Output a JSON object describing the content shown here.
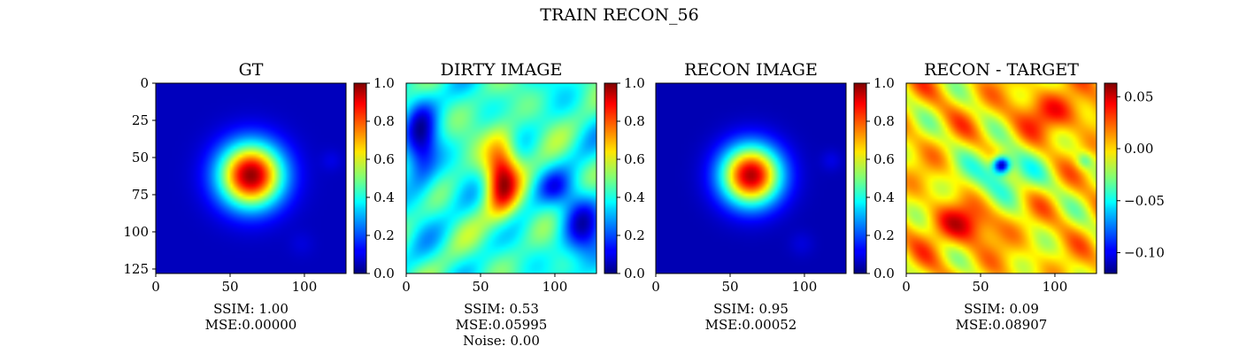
{
  "figure": {
    "suptitle": "TRAIN RECON_56",
    "colormap": "jet"
  },
  "chart_data": [
    {
      "type": "heatmap",
      "title": "GT",
      "xlim": [
        0,
        128
      ],
      "ylim": [
        128,
        0
      ],
      "xticks": [
        0,
        50,
        100
      ],
      "yticks": [
        0,
        25,
        50,
        75,
        100,
        125
      ],
      "colorbar": {
        "min": 0.0,
        "max": 1.0,
        "ticks": [
          "0.0",
          "0.2",
          "0.4",
          "0.6",
          "0.8",
          "1.0"
        ]
      },
      "metrics": [
        "SSIM: 1.00",
        "MSE:0.00000"
      ],
      "pattern": "gt"
    },
    {
      "type": "heatmap",
      "title": "DIRTY IMAGE",
      "xlim": [
        0,
        128
      ],
      "xticks": [
        0,
        50,
        100
      ],
      "colorbar": {
        "min": 0.0,
        "max": 1.0,
        "ticks": [
          "0.0",
          "0.2",
          "0.4",
          "0.6",
          "0.8",
          "1.0"
        ]
      },
      "metrics": [
        "SSIM: 0.53",
        "MSE:0.05995",
        "Noise: 0.00"
      ],
      "pattern": "dirty"
    },
    {
      "type": "heatmap",
      "title": "RECON IMAGE",
      "xlim": [
        0,
        128
      ],
      "xticks": [
        0,
        50,
        100
      ],
      "colorbar": {
        "min": 0.0,
        "max": 1.0,
        "ticks": [
          "0.0",
          "0.2",
          "0.4",
          "0.6",
          "0.8",
          "1.0"
        ]
      },
      "metrics": [
        "SSIM: 0.95",
        "MSE:0.00052"
      ],
      "pattern": "recon"
    },
    {
      "type": "heatmap",
      "title": "RECON - TARGET",
      "xlim": [
        0,
        128
      ],
      "xticks": [
        0,
        50,
        100
      ],
      "colorbar": {
        "min": -0.12,
        "max": 0.063,
        "ticks": [
          "0.05",
          "0.00",
          "−0.05",
          "−0.10"
        ],
        "tick_values": [
          0.05,
          0.0,
          -0.05,
          -0.1
        ]
      },
      "metrics": [
        "SSIM: 0.09",
        "MSE:0.08907"
      ],
      "pattern": "diff"
    }
  ]
}
